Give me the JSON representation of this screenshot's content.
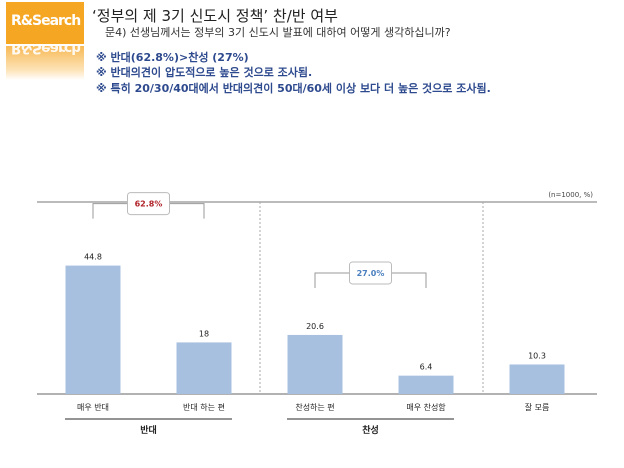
{
  "header": {
    "logo_text": "R&Search",
    "title": "‘정부의 제 3기 신도시 정책’ 찬/반 여부",
    "question": "문4) 선생님께서는 정부의 3기 신도시 발표에 대하여 어떻게 생각하십니까?",
    "notes": [
      "※ 반대(62.8%)>찬성 (27%)",
      "※ 반대의견이 압도적으로 높은 것으로 조사됨.",
      "※ 특히 20/30/40대에서 반대의견이 50대/60세 이상 보다 더 높은 것으로 조사됨."
    ]
  },
  "colors": {
    "bar": "#a8c0e0",
    "against_summary": "#b0242a",
    "for_summary": "#4a7fbf",
    "logo": "#f5a623"
  },
  "chart_data": {
    "type": "bar",
    "sample_note": "(n=1000, %)",
    "categories": [
      "매우 반대",
      "반대 하는 편",
      "찬성하는 편",
      "매우 찬성함",
      "잘 모름"
    ],
    "values": [
      44.8,
      18,
      20.6,
      6.4,
      10.3
    ],
    "value_labels": [
      "44.8",
      "18",
      "20.6",
      "6.4",
      "10.3"
    ],
    "ylim": [
      0,
      60
    ],
    "groups": [
      {
        "name": "반대",
        "members": [
          0,
          1
        ],
        "summary": "62.8%"
      },
      {
        "name": "찬성",
        "members": [
          2,
          3
        ],
        "summary": "27.0%"
      }
    ]
  }
}
